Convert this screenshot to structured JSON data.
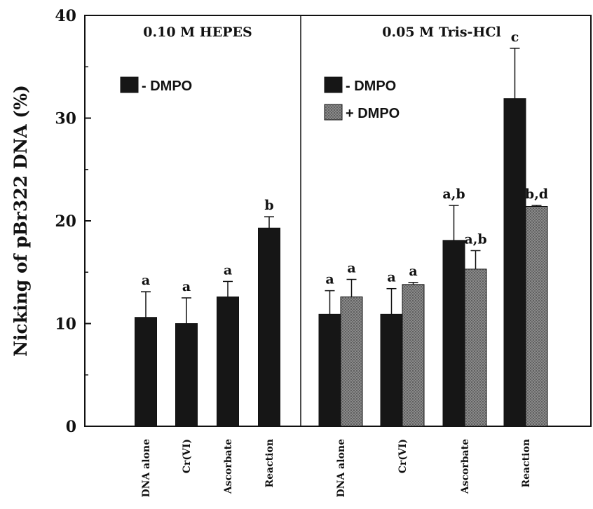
{
  "chart_data": {
    "type": "bar",
    "ylabel": "Nicking of pBr322 DNA (%)",
    "ylim": [
      0,
      40
    ],
    "yticks": [
      "0",
      "10",
      "20",
      "30",
      "40"
    ],
    "grid": false,
    "panels": [
      {
        "title": "0.10  M  HEPES",
        "legend_position": "top-left",
        "legend": [
          {
            "name": "- DMPO",
            "color": "#161616"
          }
        ],
        "categories": [
          "DNA alone",
          "Cr(VI)",
          "Ascorbate",
          "Reaction"
        ],
        "series": [
          {
            "name": "- DMPO",
            "color": "#161616",
            "values": [
              10.6,
              10.0,
              12.6,
              19.3
            ],
            "errors": [
              2.5,
              2.5,
              1.5,
              1.1
            ],
            "labels": [
              "a",
              "a",
              "a",
              "b"
            ]
          }
        ]
      },
      {
        "title": "0.05  M  Tris-HCl",
        "legend_position": "top-left",
        "legend": [
          {
            "name": "- DMPO",
            "color": "#161616"
          },
          {
            "name": "+ DMPO",
            "color": "#7a7a7a"
          }
        ],
        "categories": [
          "DNA alone",
          "Cr(VI)",
          "Ascorbate",
          "Reaction"
        ],
        "series": [
          {
            "name": "- DMPO",
            "color": "#161616",
            "values": [
              10.9,
              10.9,
              18.1,
              31.9
            ],
            "errors": [
              2.3,
              2.5,
              3.4,
              4.9
            ],
            "labels": [
              "a",
              "a",
              "a,b",
              "c"
            ]
          },
          {
            "name": "+ DMPO",
            "color": "#7a7a7a",
            "values": [
              12.6,
              13.8,
              15.3,
              21.4
            ],
            "errors": [
              1.7,
              0.2,
              1.8,
              0.1
            ],
            "labels": [
              "a",
              "a",
              "a,b",
              "b,d"
            ]
          }
        ]
      }
    ]
  }
}
